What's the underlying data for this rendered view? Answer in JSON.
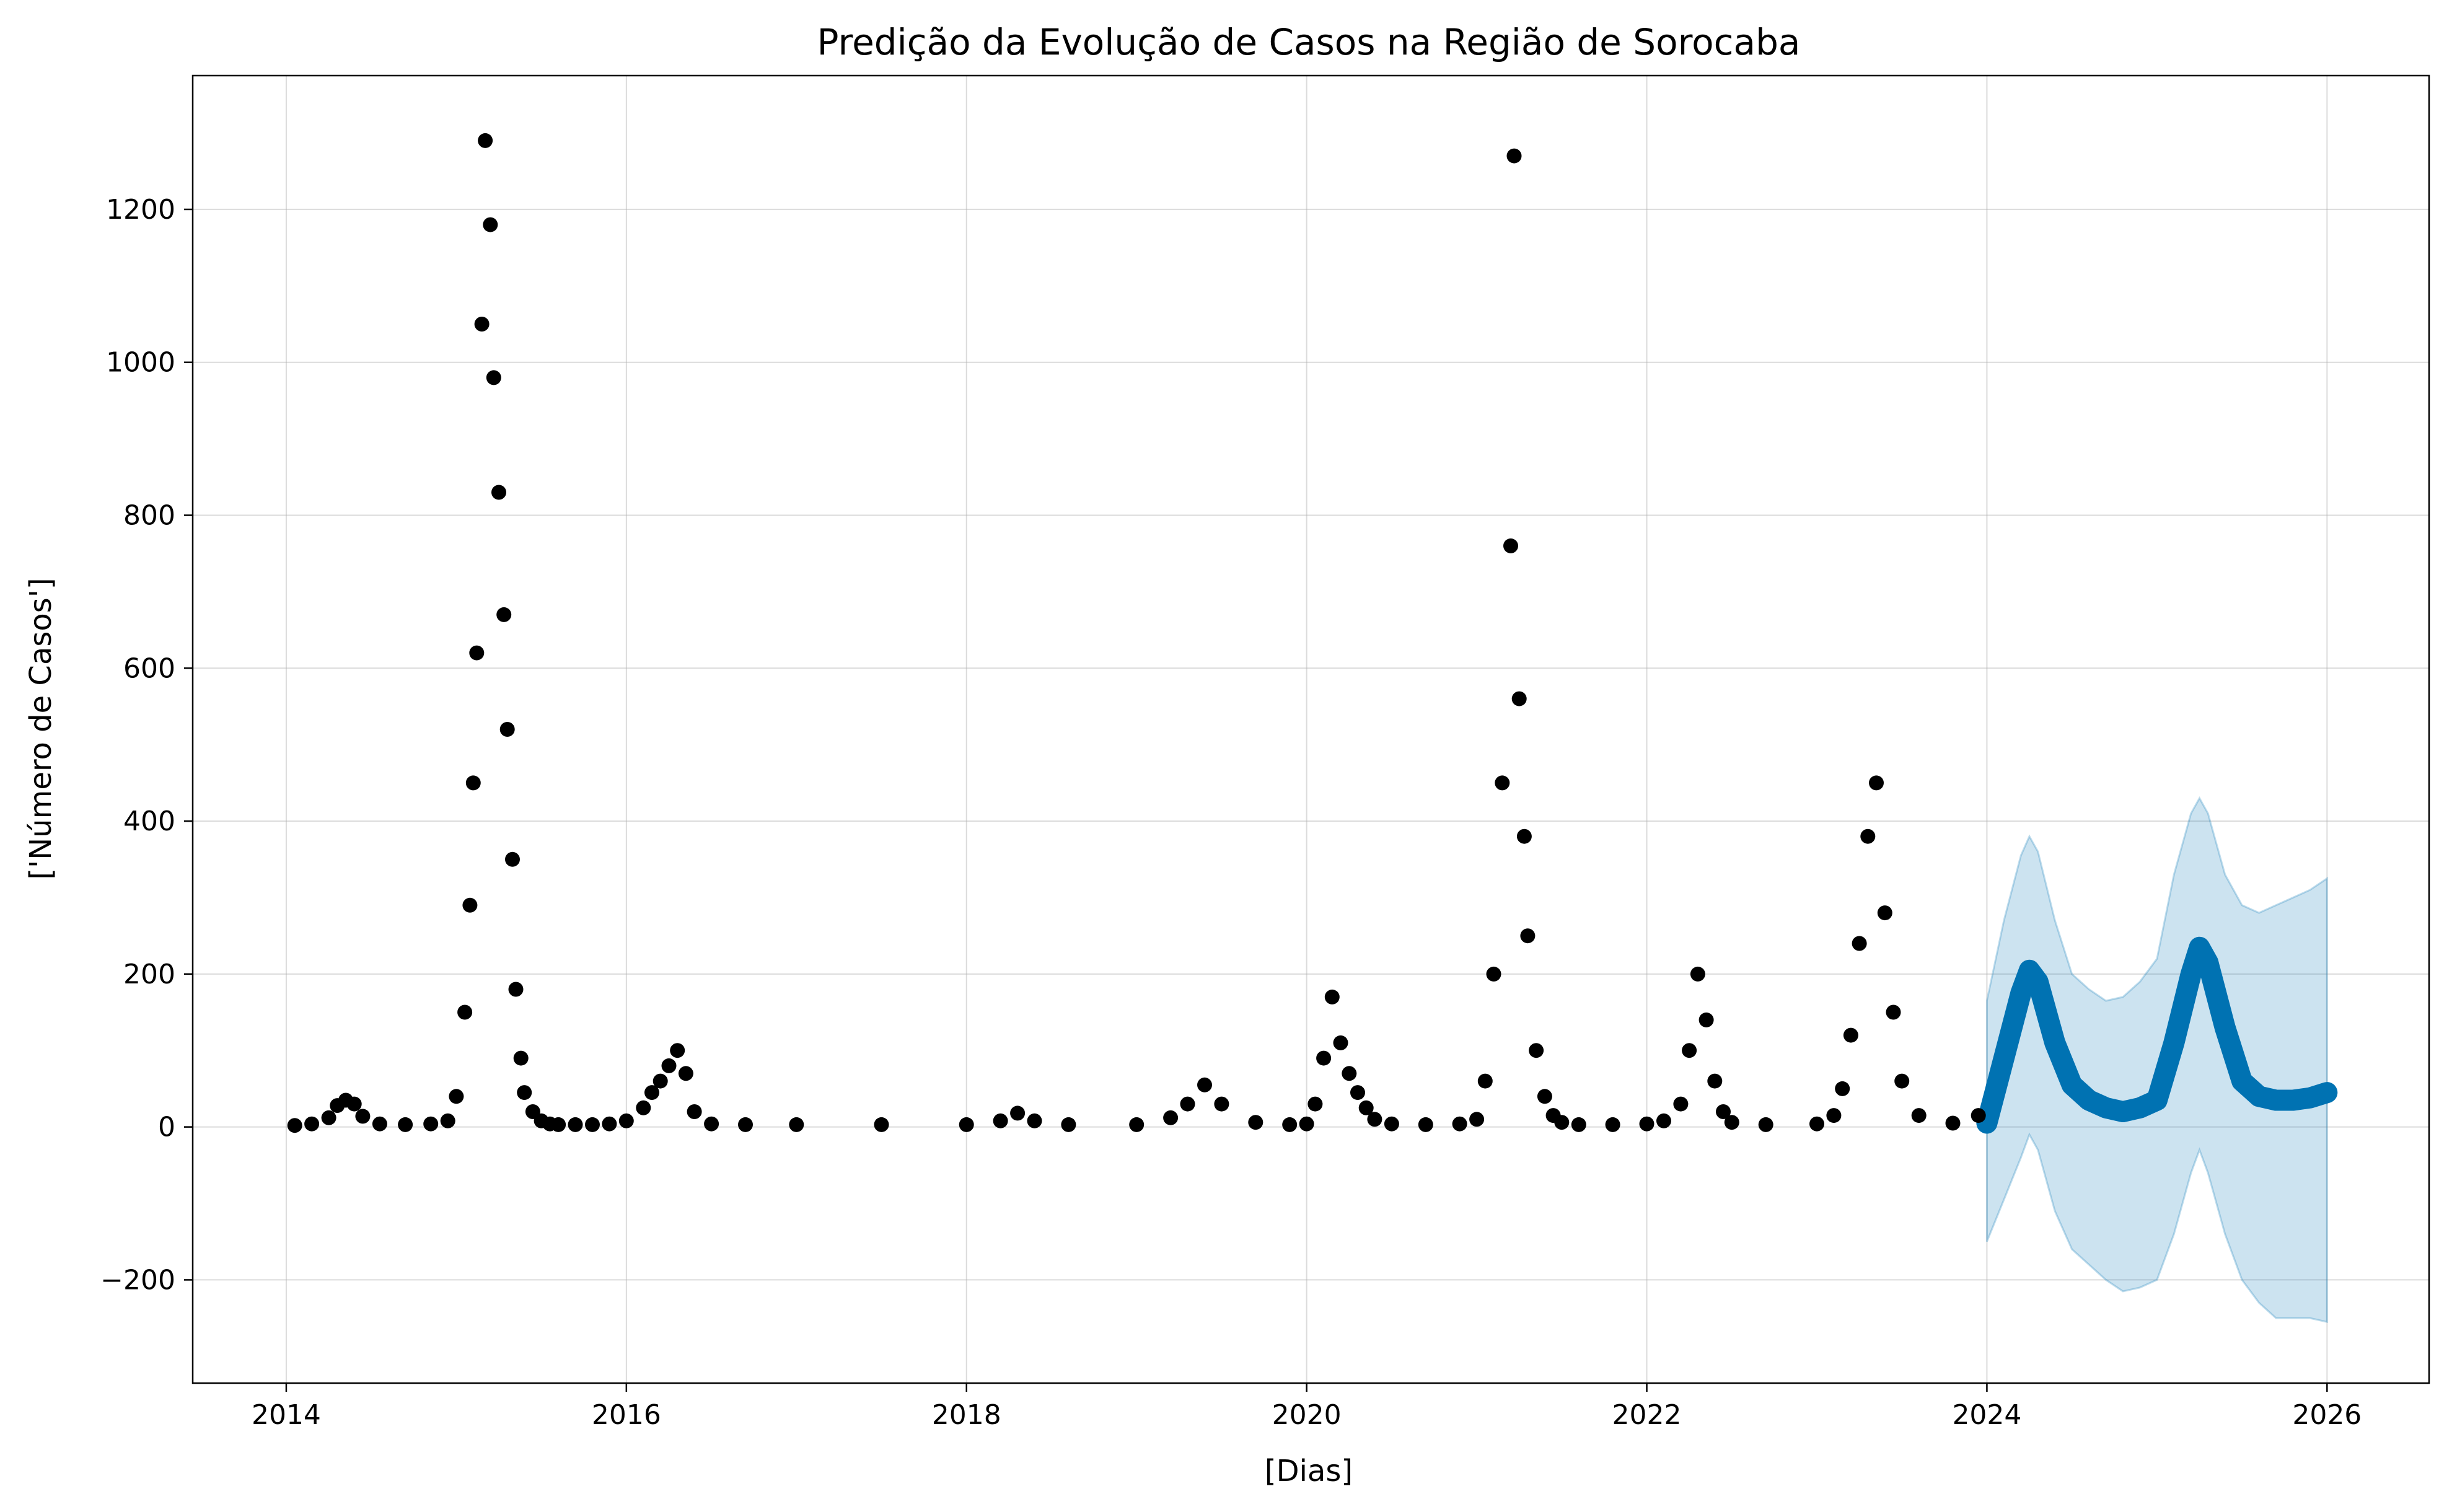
{
  "chart_data": {
    "type": "scatter",
    "title": "Predição da Evolução de Casos na Região de Sorocaba",
    "xlabel": "[Dias]",
    "ylabel": "['Número de Casos']",
    "xlim": [
      2013.45,
      2026.6
    ],
    "ylim": [
      -335,
      1375
    ],
    "x_ticks": [
      2014,
      2016,
      2018,
      2020,
      2022,
      2024,
      2026
    ],
    "x_tick_labels": [
      "2014",
      "2016",
      "2018",
      "2020",
      "2022",
      "2024",
      "2026"
    ],
    "y_ticks": [
      -200,
      0,
      200,
      400,
      600,
      800,
      1000,
      1200
    ],
    "y_tick_labels": [
      "−200",
      "0",
      "200",
      "400",
      "600",
      "800",
      "1000",
      "1200"
    ],
    "grid": true,
    "colors": {
      "observed": "#000000",
      "forecast": "#0072B2",
      "uncertainty": "#0072B2"
    },
    "series": [
      {
        "kind": "observed",
        "marker": "dot",
        "x": [
          2014.05,
          2014.15,
          2014.25,
          2014.3,
          2014.35,
          2014.4,
          2014.45,
          2014.55,
          2014.7,
          2014.85,
          2014.95,
          2015.0,
          2015.05,
          2015.08,
          2015.1,
          2015.12,
          2015.15,
          2015.17,
          2015.2,
          2015.22,
          2015.25,
          2015.28,
          2015.3,
          2015.33,
          2015.35,
          2015.38,
          2015.4,
          2015.45,
          2015.5,
          2015.55,
          2015.6,
          2015.7,
          2015.8,
          2015.9,
          2016.0,
          2016.1,
          2016.15,
          2016.2,
          2016.25,
          2016.3,
          2016.35,
          2016.4,
          2016.5,
          2016.7,
          2017.0,
          2017.5,
          2018.0,
          2018.2,
          2018.3,
          2018.4,
          2018.6,
          2019.0,
          2019.2,
          2019.3,
          2019.4,
          2019.5,
          2019.7,
          2019.9,
          2020.0,
          2020.05,
          2020.1,
          2020.15,
          2020.2,
          2020.25,
          2020.3,
          2020.35,
          2020.4,
          2020.5,
          2020.7,
          2020.9,
          2021.0,
          2021.05,
          2021.1,
          2021.15,
          2021.2,
          2021.22,
          2021.25,
          2021.28,
          2021.3,
          2021.35,
          2021.4,
          2021.45,
          2021.5,
          2021.6,
          2021.8,
          2022.0,
          2022.1,
          2022.2,
          2022.25,
          2022.3,
          2022.35,
          2022.4,
          2022.45,
          2022.5,
          2022.7,
          2023.0,
          2023.1,
          2023.15,
          2023.2,
          2023.25,
          2023.3,
          2023.35,
          2023.4,
          2023.45,
          2023.5,
          2023.6,
          2023.8,
          2023.95
        ],
        "y": [
          2,
          4,
          12,
          28,
          35,
          30,
          14,
          4,
          3,
          4,
          8,
          40,
          150,
          290,
          450,
          620,
          1050,
          1290,
          1180,
          980,
          830,
          670,
          520,
          350,
          180,
          90,
          45,
          20,
          8,
          4,
          3,
          3,
          3,
          4,
          8,
          25,
          45,
          60,
          80,
          100,
          70,
          20,
          4,
          3,
          3,
          3,
          3,
          8,
          18,
          8,
          3,
          3,
          12,
          30,
          55,
          30,
          6,
          3,
          4,
          30,
          90,
          170,
          110,
          70,
          45,
          25,
          10,
          4,
          3,
          4,
          10,
          60,
          200,
          450,
          760,
          1270,
          560,
          380,
          250,
          100,
          40,
          15,
          6,
          3,
          3,
          4,
          8,
          30,
          100,
          200,
          140,
          60,
          20,
          6,
          3,
          4,
          15,
          50,
          120,
          240,
          380,
          450,
          280,
          150,
          60,
          15,
          5,
          15
        ]
      },
      {
        "kind": "forecast",
        "x": [
          2024.0,
          2024.1,
          2024.2,
          2024.25,
          2024.3,
          2024.4,
          2024.5,
          2024.6,
          2024.7,
          2024.8,
          2024.9,
          2025.0,
          2025.1,
          2025.2,
          2025.25,
          2025.3,
          2025.4,
          2025.5,
          2025.6,
          2025.7,
          2025.8,
          2025.9,
          2026.0
        ],
        "y": [
          5,
          90,
          175,
          205,
          190,
          110,
          55,
          35,
          25,
          20,
          25,
          35,
          110,
          200,
          235,
          215,
          130,
          60,
          40,
          35,
          35,
          38,
          45
        ],
        "lower": [
          -150,
          -95,
          -40,
          -10,
          -30,
          -110,
          -160,
          -180,
          -200,
          -215,
          -210,
          -200,
          -140,
          -60,
          -30,
          -60,
          -140,
          -200,
          -230,
          -250,
          -250,
          -250,
          -255
        ],
        "upper": [
          165,
          270,
          355,
          380,
          360,
          270,
          200,
          180,
          165,
          170,
          190,
          220,
          330,
          410,
          430,
          410,
          330,
          290,
          280,
          290,
          300,
          310,
          325
        ]
      }
    ]
  }
}
